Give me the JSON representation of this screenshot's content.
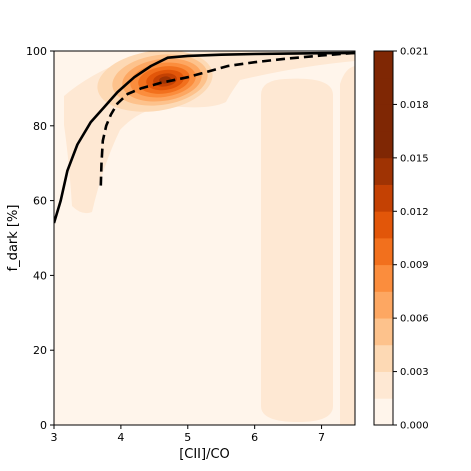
{
  "chart_data": {
    "type": "contour",
    "xlabel": "[CII]/CO",
    "ylabel": "f_dark [%]",
    "xlim": [
      3,
      7.5
    ],
    "ylim": [
      0,
      100
    ],
    "x_ticks": [
      3,
      4,
      5,
      6,
      7
    ],
    "y_ticks": [
      0,
      20,
      40,
      60,
      80,
      100
    ],
    "grid": false,
    "density_peak": {
      "x": 4.6,
      "y": 92,
      "value": 0.021
    },
    "series": [
      {
        "style": "solid",
        "color": "#000000",
        "points": [
          [
            3.0,
            54
          ],
          [
            3.1,
            60
          ],
          [
            3.2,
            68
          ],
          [
            3.35,
            75
          ],
          [
            3.55,
            81
          ],
          [
            3.75,
            85
          ],
          [
            3.95,
            89
          ],
          [
            4.2,
            93
          ],
          [
            4.45,
            96
          ],
          [
            4.7,
            98.2
          ],
          [
            5.0,
            98.7
          ],
          [
            5.5,
            99
          ],
          [
            6.0,
            99.2
          ],
          [
            6.5,
            99.3
          ],
          [
            7.0,
            99.4
          ],
          [
            7.5,
            99.5
          ]
        ]
      },
      {
        "style": "dashed",
        "color": "#000000",
        "points": [
          [
            3.7,
            64
          ],
          [
            3.71,
            70
          ],
          [
            3.73,
            76
          ],
          [
            3.78,
            80
          ],
          [
            3.85,
            83
          ],
          [
            3.95,
            86
          ],
          [
            4.1,
            88.5
          ],
          [
            4.3,
            90
          ],
          [
            4.6,
            91.5
          ],
          [
            5.0,
            93
          ],
          [
            5.3,
            94.5
          ],
          [
            5.6,
            96
          ],
          [
            6.0,
            97
          ],
          [
            6.5,
            98
          ],
          [
            7.0,
            98.8
          ],
          [
            7.5,
            99.5
          ]
        ]
      }
    ],
    "colorbar": {
      "levels": [
        0.0,
        0.0015,
        0.003,
        0.0045,
        0.006,
        0.0075,
        0.009,
        0.0105,
        0.012,
        0.0135,
        0.015,
        0.0165,
        0.018,
        0.0195,
        0.021
      ],
      "tick_values": [
        0.0,
        0.003,
        0.006,
        0.009,
        0.012,
        0.015,
        0.018,
        0.021
      ],
      "tick_labels": [
        "0.000",
        "0.003",
        "0.006",
        "0.009",
        "0.012",
        "0.015",
        "0.018",
        "0.021"
      ],
      "colors": [
        "#fff5eb",
        "#fee8d3",
        "#fdd9b4",
        "#fdc28c",
        "#fda762",
        "#fb8d3d",
        "#f2701d",
        "#e25609",
        "#c44103",
        "#9f3303",
        "#7f2704",
        "#7f2704",
        "#7f2704",
        "#7f2704"
      ]
    }
  }
}
